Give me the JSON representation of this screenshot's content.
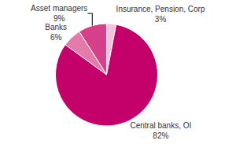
{
  "chart_data": {
    "type": "pie",
    "categories": [
      "Insurance, Pension, Corp",
      "Asset managers",
      "Banks",
      "Central banks, OI"
    ],
    "values": [
      3,
      9,
      6,
      82
    ],
    "value_labels": [
      "3%",
      "9%",
      "6%",
      "82%"
    ],
    "colors": [
      "#f4c3da",
      "#d6408a",
      "#e37aa9",
      "#c4006a"
    ],
    "data_labels": true
  }
}
